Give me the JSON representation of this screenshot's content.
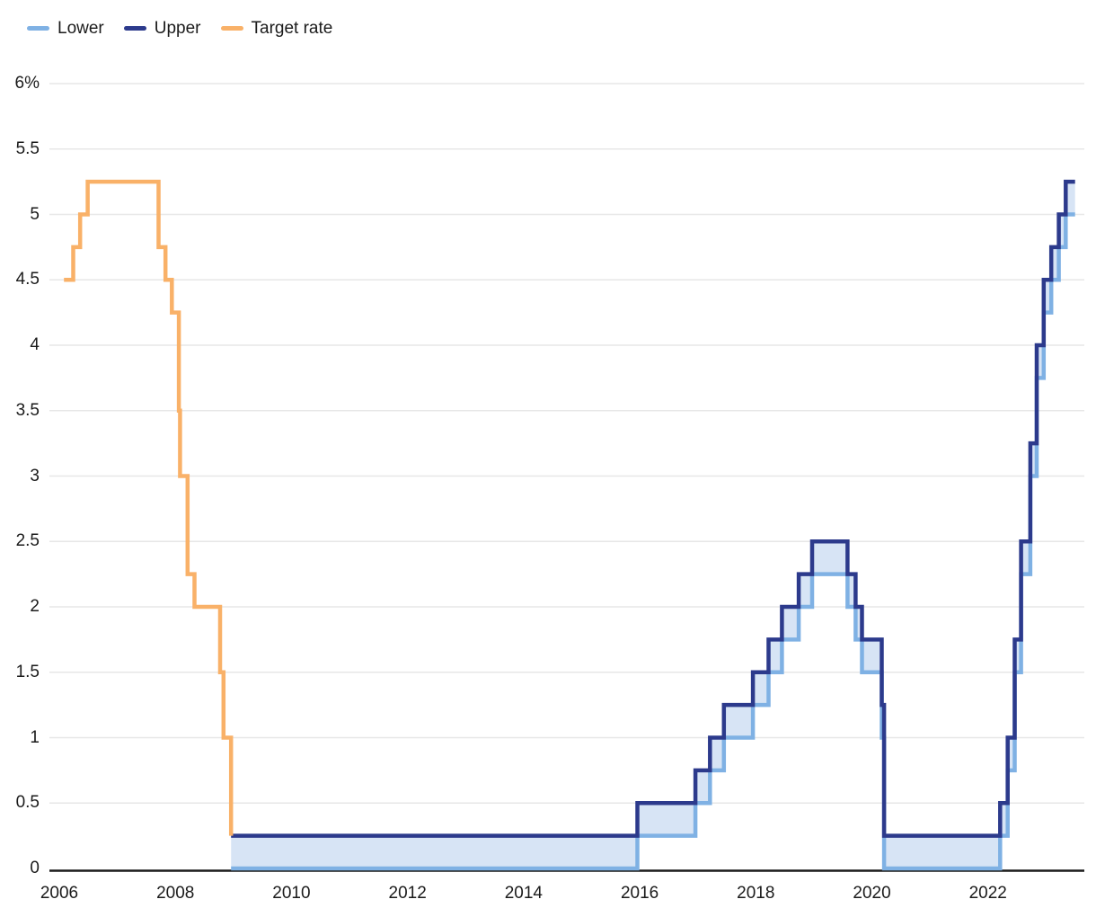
{
  "chart_data": {
    "type": "line",
    "subtype": "step",
    "title": "",
    "ylabel": "",
    "xlabel": "",
    "unit": "%",
    "grid": true,
    "legend_position": "top-left",
    "colors": {
      "lower": "#7fb1e4",
      "upper": "#2c3a8c",
      "target": "#f9b168",
      "band_fill": "#d7e4f5",
      "grid_line": "#e7e7e7",
      "axis_line": "#1c1c1c",
      "text": "#1b1b1b"
    },
    "legend": [
      {
        "label": "Lower",
        "color": "#7fb1e4"
      },
      {
        "label": "Upper",
        "color": "#2c3a8c"
      },
      {
        "label": "Target rate",
        "color": "#f9b168"
      }
    ],
    "x_range": [
      2005.83,
      2023.66
    ],
    "y_range": [
      0,
      6
    ],
    "x_ticks": [
      {
        "label": "2006",
        "value": 2006
      },
      {
        "label": "2008",
        "value": 2008
      },
      {
        "label": "2010",
        "value": 2010
      },
      {
        "label": "2012",
        "value": 2012
      },
      {
        "label": "2014",
        "value": 2014
      },
      {
        "label": "2016",
        "value": 2016
      },
      {
        "label": "2018",
        "value": 2018
      },
      {
        "label": "2020",
        "value": 2020
      },
      {
        "label": "2022",
        "value": 2022
      }
    ],
    "y_ticks": [
      {
        "label": "6%",
        "value": 6
      },
      {
        "label": "5.5",
        "value": 5.5
      },
      {
        "label": "5",
        "value": 5
      },
      {
        "label": "4.5",
        "value": 4.5
      },
      {
        "label": "4",
        "value": 4
      },
      {
        "label": "3.5",
        "value": 3.5
      },
      {
        "label": "3",
        "value": 3
      },
      {
        "label": "2.5",
        "value": 2.5
      },
      {
        "label": "2",
        "value": 2
      },
      {
        "label": "1.5",
        "value": 1.5
      },
      {
        "label": "1",
        "value": 1
      },
      {
        "label": "0.5",
        "value": 0.5
      },
      {
        "label": "0",
        "value": 0
      }
    ],
    "band": {
      "between": [
        "Lower",
        "Upper"
      ],
      "fill": "#d7e4f5"
    },
    "series": [
      {
        "name": "Target rate",
        "color": "#f9b168",
        "points": [
          [
            2006.08,
            4.5
          ],
          [
            2006.24,
            4.75
          ],
          [
            2006.36,
            5.0
          ],
          [
            2006.49,
            5.25
          ],
          [
            2007.71,
            4.75
          ],
          [
            2007.83,
            4.5
          ],
          [
            2007.94,
            4.25
          ],
          [
            2008.06,
            3.5
          ],
          [
            2008.08,
            3.0
          ],
          [
            2008.21,
            2.25
          ],
          [
            2008.33,
            2.0
          ],
          [
            2008.77,
            1.5
          ],
          [
            2008.83,
            1.0
          ],
          [
            2008.96,
            0.25
          ]
        ]
      },
      {
        "name": "Upper",
        "color": "#2c3a8c",
        "points": [
          [
            2008.96,
            0.25
          ],
          [
            2015.96,
            0.5
          ],
          [
            2016.96,
            0.75
          ],
          [
            2017.21,
            1.0
          ],
          [
            2017.45,
            1.25
          ],
          [
            2017.95,
            1.5
          ],
          [
            2018.22,
            1.75
          ],
          [
            2018.45,
            2.0
          ],
          [
            2018.74,
            2.25
          ],
          [
            2018.97,
            2.5
          ],
          [
            2019.58,
            2.25
          ],
          [
            2019.72,
            2.0
          ],
          [
            2019.83,
            1.75
          ],
          [
            2020.17,
            1.25
          ],
          [
            2020.21,
            0.25
          ],
          [
            2022.21,
            0.5
          ],
          [
            2022.34,
            1.0
          ],
          [
            2022.46,
            1.75
          ],
          [
            2022.57,
            2.5
          ],
          [
            2022.73,
            3.25
          ],
          [
            2022.84,
            4.0
          ],
          [
            2022.96,
            4.5
          ],
          [
            2023.09,
            4.75
          ],
          [
            2023.22,
            5.0
          ],
          [
            2023.34,
            5.25
          ],
          [
            2023.5,
            5.25
          ]
        ]
      },
      {
        "name": "Lower",
        "color": "#7fb1e4",
        "points": [
          [
            2008.96,
            0.0
          ],
          [
            2015.96,
            0.25
          ],
          [
            2016.96,
            0.5
          ],
          [
            2017.21,
            0.75
          ],
          [
            2017.45,
            1.0
          ],
          [
            2017.95,
            1.25
          ],
          [
            2018.22,
            1.5
          ],
          [
            2018.45,
            1.75
          ],
          [
            2018.74,
            2.0
          ],
          [
            2018.97,
            2.25
          ],
          [
            2019.58,
            2.0
          ],
          [
            2019.72,
            1.75
          ],
          [
            2019.83,
            1.5
          ],
          [
            2020.17,
            1.0
          ],
          [
            2020.21,
            0.0
          ],
          [
            2022.21,
            0.25
          ],
          [
            2022.34,
            0.75
          ],
          [
            2022.46,
            1.5
          ],
          [
            2022.57,
            2.25
          ],
          [
            2022.73,
            3.0
          ],
          [
            2022.84,
            3.75
          ],
          [
            2022.96,
            4.25
          ],
          [
            2023.09,
            4.5
          ],
          [
            2023.22,
            4.75
          ],
          [
            2023.34,
            5.0
          ],
          [
            2023.5,
            5.0
          ]
        ]
      }
    ]
  }
}
